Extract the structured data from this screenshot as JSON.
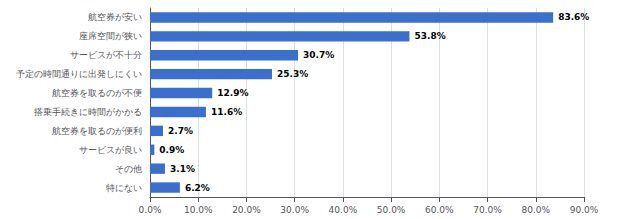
{
  "chart_data": {
    "type": "bar",
    "orientation": "horizontal",
    "categories": [
      "航空券が安い",
      "座席空間が狭い",
      "サービスが不十分",
      "予定の時間通りに出発しにくい",
      "航空券を取るのが不便",
      "搭乗手続きに時間がかかる",
      "航空券を取るのが便利",
      "サービスが良い",
      "その他",
      "特にない"
    ],
    "values": [
      83.6,
      53.8,
      30.7,
      25.3,
      12.9,
      11.6,
      2.7,
      0.9,
      3.1,
      6.2
    ],
    "value_labels": [
      "83.6%",
      "53.8%",
      "30.7%",
      "25.3%",
      "12.9%",
      "11.6%",
      "2.7%",
      "0.9%",
      "3.1%",
      "6.2%"
    ],
    "data_labels": true,
    "color": "#3a6fcd",
    "xlim": [
      0,
      90
    ],
    "xticks": [
      {
        "value": 0,
        "label": "0.0%"
      },
      {
        "value": 10,
        "label": "10.0%"
      },
      {
        "value": 20,
        "label": "20.0%"
      },
      {
        "value": 30,
        "label": "30.0%"
      },
      {
        "value": 40,
        "label": "40.0%"
      },
      {
        "value": 50,
        "label": "50.0%"
      },
      {
        "value": 60,
        "label": "60.0%"
      },
      {
        "value": 70,
        "label": "70.0%"
      },
      {
        "value": 80,
        "label": "80.0%"
      },
      {
        "value": 90,
        "label": "90.0%"
      }
    ],
    "grid": true
  }
}
